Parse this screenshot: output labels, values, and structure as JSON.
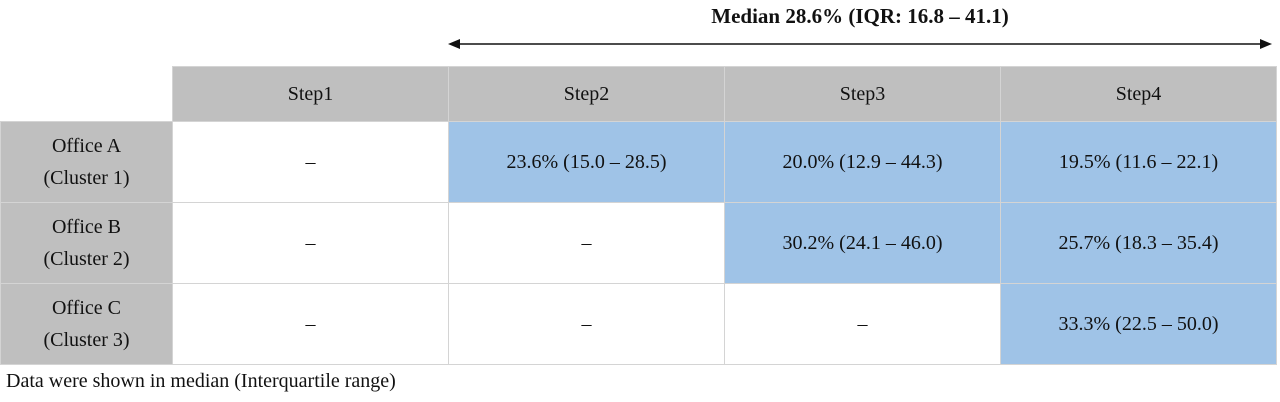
{
  "header": {
    "title": "Median 28.6% (IQR: 16.8 – 41.1)"
  },
  "table": {
    "columns": [
      "Step1",
      "Step2",
      "Step3",
      "Step4"
    ],
    "rows": [
      {
        "label": [
          "Office A",
          "(Cluster 1)"
        ],
        "cells": [
          "–",
          "23.6% (15.0 – 28.5)",
          "20.0% (12.9 – 44.3)",
          "19.5% (11.6 – 22.1)"
        ]
      },
      {
        "label": [
          "Office B",
          "(Cluster 2)"
        ],
        "cells": [
          "–",
          "–",
          "30.2% (24.1 – 46.0)",
          "25.7% (18.3 – 35.4)"
        ]
      },
      {
        "label": [
          "Office C",
          "(Cluster 3)"
        ],
        "cells": [
          "–",
          "–",
          "–",
          "33.3% (22.5 – 50.0)"
        ]
      }
    ]
  },
  "footnote": "Data were shown in median (Interquartile range)"
}
